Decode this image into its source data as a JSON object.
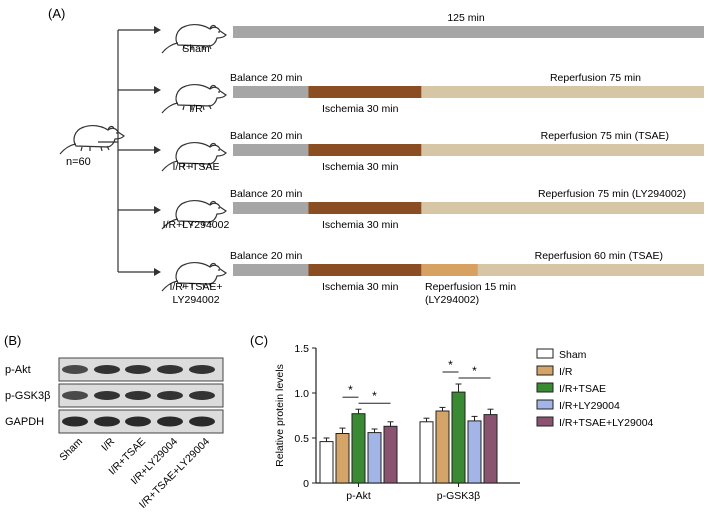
{
  "panel_a": {
    "label": "(A)",
    "group_total": "n=60",
    "groups": [
      {
        "name": "Sham",
        "above_labels": [
          "125 min"
        ],
        "below_labels": [],
        "segments": [
          {
            "phase": "full",
            "minutes": 125,
            "color": "#a6a6a6"
          }
        ]
      },
      {
        "name": "I/R",
        "above_labels": [
          "Balance 20 min",
          "Reperfusion 75 min"
        ],
        "below_labels": [
          "Ischemia 30 min"
        ],
        "segments": [
          {
            "phase": "balance",
            "minutes": 20,
            "color": "#a6a6a6"
          },
          {
            "phase": "ischemia",
            "minutes": 30,
            "color": "#8b4d22"
          },
          {
            "phase": "reperfusion",
            "minutes": 75,
            "color": "#d6c6a6"
          }
        ]
      },
      {
        "name": "I/R+TSAE",
        "above_labels": [
          "Balance 20 min",
          "Reperfusion 75 min (TSAE)"
        ],
        "below_labels": [
          "Ischemia 30 min"
        ],
        "segments": [
          {
            "phase": "balance",
            "minutes": 20,
            "color": "#a6a6a6"
          },
          {
            "phase": "ischemia",
            "minutes": 30,
            "color": "#8b4d22"
          },
          {
            "phase": "reperfusion",
            "minutes": 75,
            "color": "#d6c6a6"
          }
        ]
      },
      {
        "name": "I/R+LY294002",
        "above_labels": [
          "Balance 20 min",
          "Reperfusion 75 min (LY294002)"
        ],
        "below_labels": [
          "Ischemia 30 min"
        ],
        "segments": [
          {
            "phase": "balance",
            "minutes": 20,
            "color": "#a6a6a6"
          },
          {
            "phase": "ischemia",
            "minutes": 30,
            "color": "#8b4d22"
          },
          {
            "phase": "reperfusion",
            "minutes": 75,
            "color": "#d6c6a6"
          }
        ]
      },
      {
        "name": "I/R+TSAE+\nLY294002",
        "name_lines": [
          "I/R+TSAE+",
          "LY294002"
        ],
        "above_labels": [
          "Balance 20 min",
          "Reperfusion 60 min (TSAE)"
        ],
        "below_labels": [
          "Ischemia 30 min",
          "Reperfusion 15 min",
          "(LY294002)"
        ],
        "segments": [
          {
            "phase": "balance",
            "minutes": 20,
            "color": "#a6a6a6"
          },
          {
            "phase": "ischemia",
            "minutes": 30,
            "color": "#8b4d22"
          },
          {
            "phase": "reperfusion-ly",
            "minutes": 15,
            "color": "#d7a162"
          },
          {
            "phase": "reperfusion-tsae",
            "minutes": 60,
            "color": "#d6c6a6"
          }
        ]
      }
    ]
  },
  "panel_b": {
    "label": "(B)",
    "proteins": [
      "p-Akt",
      "p-GSK3β",
      "GAPDH"
    ],
    "lanes": [
      "Sham",
      "I/R",
      "I/R+TSAE",
      "I/R+LY29004",
      "I/R+TSAE+LY29004"
    ]
  },
  "panel_c": {
    "label": "(C)"
  },
  "chart_data": {
    "type": "bar",
    "title": "",
    "xlabel": "",
    "ylabel": "Relative protein levels",
    "ylim": [
      0,
      1.5
    ],
    "yticks": [
      "0",
      "0.5",
      "1.0",
      "1.5"
    ],
    "categories": [
      "p-Akt",
      "p-GSK3β"
    ],
    "series": [
      {
        "name": "Sham",
        "color": "#ffffff",
        "values": [
          0.46,
          0.68
        ],
        "errors": [
          0.04,
          0.04
        ]
      },
      {
        "name": "I/R",
        "color": "#d4a468",
        "values": [
          0.55,
          0.8
        ],
        "errors": [
          0.06,
          0.04
        ]
      },
      {
        "name": "I/R+TSAE",
        "color": "#3a8a33",
        "values": [
          0.77,
          1.01
        ],
        "errors": [
          0.05,
          0.09
        ]
      },
      {
        "name": "I/R+LY29004",
        "color": "#a3b4e6",
        "values": [
          0.56,
          0.69
        ],
        "errors": [
          0.04,
          0.05
        ]
      },
      {
        "name": "I/R+TSAE+LY29004",
        "color": "#8a5470",
        "values": [
          0.63,
          0.76
        ],
        "errors": [
          0.05,
          0.06
        ]
      }
    ],
    "significance": [
      {
        "category": "p-Akt",
        "symbol": "*",
        "from_series": 1,
        "to_series": 2
      },
      {
        "category": "p-Akt",
        "symbol": "*",
        "from_series": 2,
        "to_series": 4
      },
      {
        "category": "p-GSK3β",
        "symbol": "*",
        "from_series": 1,
        "to_series": 2
      },
      {
        "category": "p-GSK3β",
        "symbol": "*",
        "from_series": 2,
        "to_series": 4
      }
    ],
    "legend_position": "right"
  }
}
